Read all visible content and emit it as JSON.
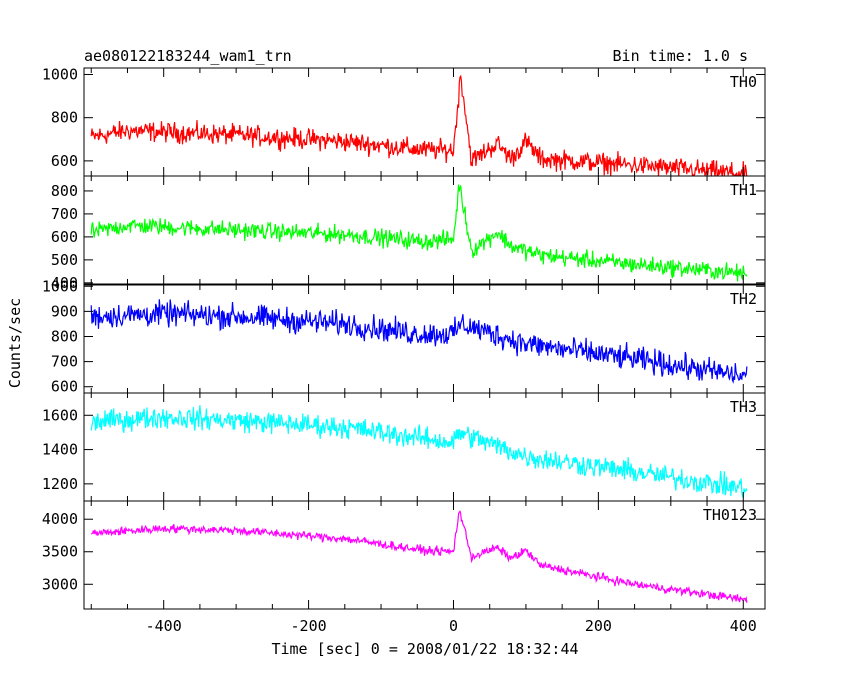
{
  "chart_data": {
    "type": "line",
    "title_left": "ae080122183244_wam1_trn",
    "title_right": "Bin time: 1.0 s",
    "xlabel": "Time [sec] 0 = 2008/01/22 18:32:44",
    "ylabel": "Counts/sec",
    "xlim": [
      -510,
      430
    ],
    "xticks": [
      -400,
      -200,
      0,
      200,
      400
    ],
    "panels": [
      {
        "name": "TH0",
        "color": "#ff0000",
        "ylim": [
          530,
          1030
        ],
        "yticks": [
          600,
          800,
          1000
        ],
        "profile": {
          "t": [
            -500,
            -450,
            -300,
            -150,
            -40,
            0,
            10,
            25,
            60,
            80,
            100,
            120,
            250,
            405
          ],
          "v": [
            710,
            740,
            720,
            690,
            650,
            650,
            1000,
            600,
            680,
            610,
            690,
            610,
            580,
            540
          ]
        },
        "noise": 40
      },
      {
        "name": "TH1",
        "color": "#00ff00",
        "ylim": [
          395,
          865
        ],
        "yticks": [
          400,
          500,
          600,
          700,
          800
        ],
        "profile": {
          "t": [
            -500,
            -450,
            -300,
            -150,
            -40,
            0,
            8,
            25,
            60,
            80,
            120,
            250,
            405
          ],
          "v": [
            620,
            650,
            630,
            610,
            580,
            590,
            830,
            540,
            620,
            560,
            520,
            480,
            440
          ]
        },
        "noise": 32
      },
      {
        "name": "TH2",
        "color": "#0000ff",
        "ylim": [
          575,
          1005
        ],
        "yticks": [
          600,
          700,
          800,
          900,
          1000
        ],
        "profile": {
          "t": [
            -500,
            -400,
            -300,
            -150,
            -50,
            0,
            10,
            100,
            250,
            405
          ],
          "v": [
            880,
            890,
            880,
            850,
            810,
            810,
            850,
            770,
            710,
            640
          ]
        },
        "noise": 42
      },
      {
        "name": "TH3",
        "color": "#00ffff",
        "ylim": [
          1100,
          1730
        ],
        "yticks": [
          1200,
          1400,
          1600
        ],
        "profile": {
          "t": [
            -500,
            -400,
            -300,
            -150,
            -50,
            0,
            8,
            100,
            250,
            405
          ],
          "v": [
            1560,
            1590,
            1570,
            1530,
            1470,
            1440,
            1500,
            1360,
            1270,
            1170
          ]
        },
        "noise": 55
      },
      {
        "name": "TH0123",
        "color": "#ff00ff",
        "ylim": [
          2620,
          4280
        ],
        "yticks": [
          3000,
          3500,
          4000
        ],
        "profile": {
          "t": [
            -500,
            -400,
            -300,
            -150,
            -40,
            0,
            8,
            25,
            60,
            80,
            100,
            120,
            250,
            405
          ],
          "v": [
            3780,
            3860,
            3830,
            3700,
            3520,
            3500,
            4150,
            3420,
            3560,
            3400,
            3520,
            3290,
            3000,
            2760
          ]
        },
        "noise": 55
      }
    ]
  }
}
